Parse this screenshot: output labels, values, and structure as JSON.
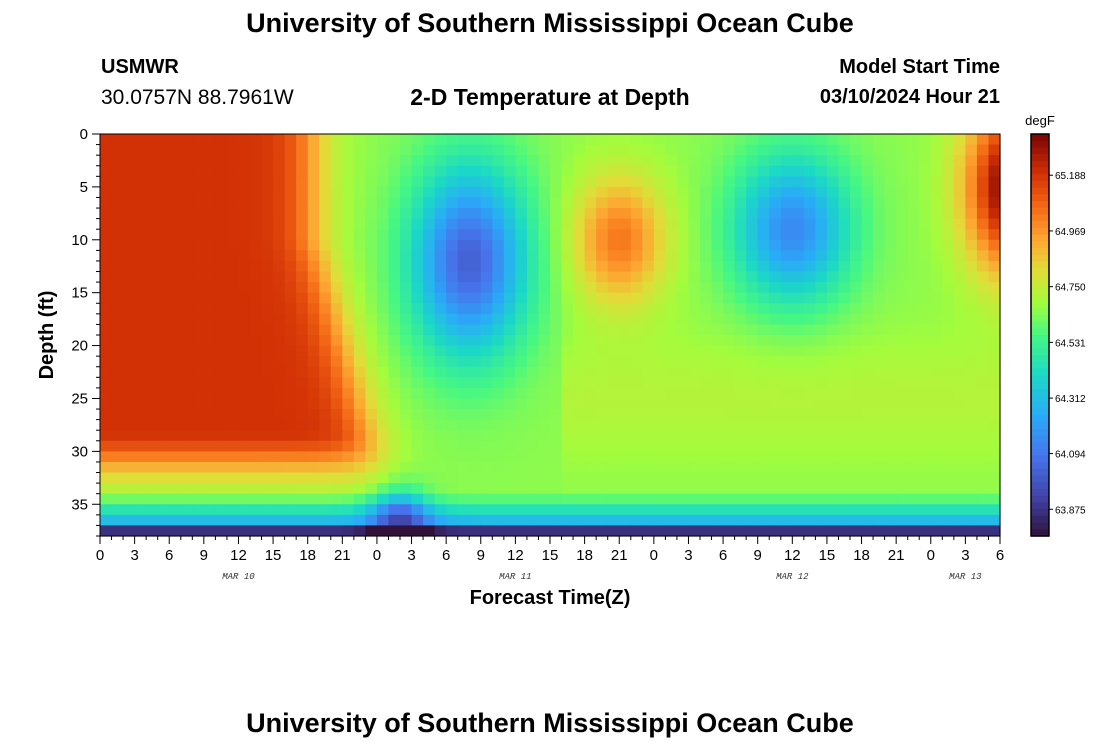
{
  "title": "University of Southern Mississippi Ocean Cube",
  "footer_title": "University of Southern Mississippi Ocean Cube",
  "station": "USMWR",
  "coordinates": "30.0757N  88.7961W",
  "subtitle": "2-D Temperature at Depth",
  "model_start_label": "Model Start Time",
  "model_start_time": "03/10/2024 Hour 21",
  "chart_data": {
    "type": "heatmap",
    "title": "2-D Temperature at Depth",
    "xlabel": "Forecast Time(Z)",
    "ylabel": "Depth (ft)",
    "x_unit": "hours",
    "x_range": [
      0,
      78
    ],
    "y_range": [
      0,
      38
    ],
    "x_tick_values": [
      0,
      3,
      6,
      9,
      12,
      15,
      18,
      21,
      24,
      27,
      30,
      33,
      36,
      39,
      42,
      45,
      48,
      51,
      54,
      57,
      60,
      63,
      66,
      69,
      72,
      75,
      78
    ],
    "x_tick_labels": [
      "0",
      "3",
      "6",
      "9",
      "12",
      "15",
      "18",
      "21",
      "0",
      "3",
      "6",
      "9",
      "12",
      "15",
      "18",
      "21",
      "0",
      "3",
      "6",
      "9",
      "12",
      "15",
      "18",
      "21",
      "0",
      "3",
      "6"
    ],
    "y_tick_values": [
      0,
      5,
      10,
      15,
      20,
      25,
      30,
      35
    ],
    "y_tick_labels": [
      "0",
      "5",
      "10",
      "15",
      "20",
      "25",
      "30",
      "35"
    ],
    "date_labels": [
      {
        "text": "MAR 10",
        "x": 12
      },
      {
        "text": "MAR 11",
        "x": 36
      },
      {
        "text": "MAR 12",
        "x": 60
      },
      {
        "text": "MAR 13",
        "x": 75
      }
    ],
    "colorbar": {
      "unit": "degF",
      "range": [
        63.77,
        65.35
      ],
      "tick_labels": [
        "63.875",
        "64.094",
        "64.312",
        "64.531",
        "64.750",
        "64.969",
        "65.188"
      ],
      "tick_values": [
        63.875,
        64.094,
        64.312,
        64.531,
        64.75,
        64.969,
        65.188
      ],
      "colormap": "turbo"
    },
    "grid": false
  }
}
